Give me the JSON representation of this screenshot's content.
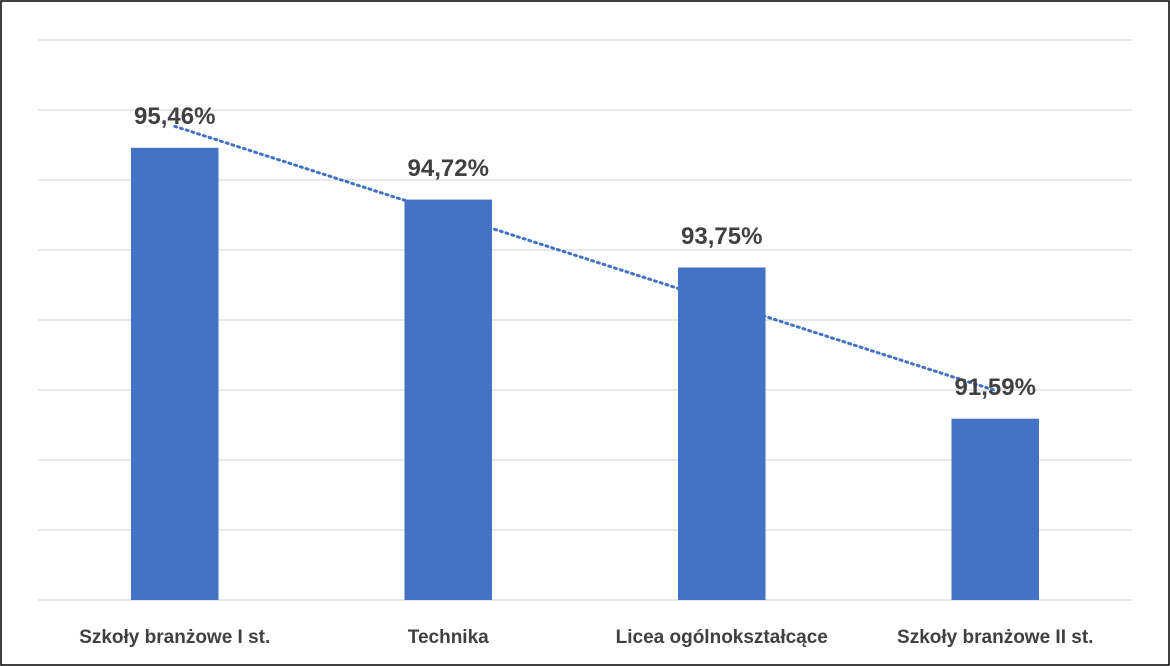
{
  "chart_data": {
    "type": "bar",
    "categories": [
      "Szkoły branżowe I st.",
      "Technika",
      "Licea ogólnokształcące",
      "Szkoły branżowe II st."
    ],
    "values": [
      95.46,
      94.72,
      93.75,
      91.59
    ],
    "value_labels": [
      "95,46%",
      "94,72%",
      "93,75%",
      "91,59%"
    ],
    "color": "#4472c4",
    "ylim": [
      89,
      97
    ],
    "yticks": [
      89,
      90,
      91,
      92,
      93,
      94,
      95,
      96,
      97
    ],
    "grid": true,
    "trendline": "linear"
  }
}
